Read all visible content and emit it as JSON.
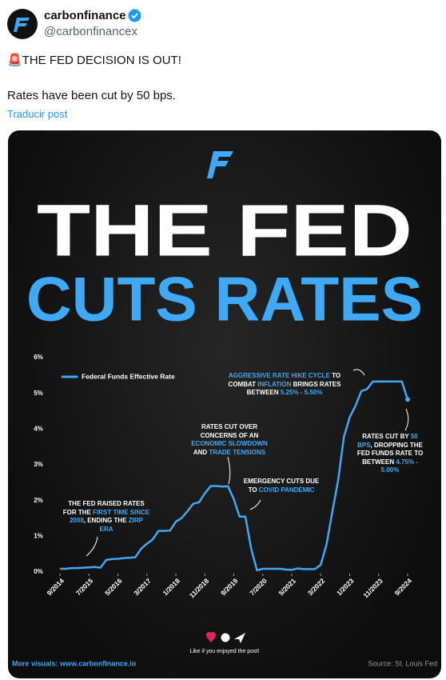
{
  "header": {
    "name": "carbonfinance",
    "handle": "@carbonfinancex",
    "text": "🚨THE FED DECISION IS OUT!",
    "subtext": "Rates have been cut by 50 bps.",
    "translate": "Traducir post"
  },
  "infographic": {
    "title_line1": "THE FED",
    "title_line2": "CUTS RATES",
    "like_text": "Like if you enjoyed the post!",
    "footer_left": "More visuals: www.carbonfinance.io",
    "footer_right": "Source: St. Louis Fed"
  },
  "chart_data": {
    "type": "line",
    "x": [
      "9/2014",
      "11/2014",
      "1/2015",
      "3/2015",
      "5/2015",
      "7/2015",
      "9/2015",
      "11/2015",
      "1/2016",
      "3/2016",
      "5/2016",
      "7/2016",
      "9/2016",
      "11/2016",
      "1/2017",
      "3/2017",
      "5/2017",
      "7/2017",
      "9/2017",
      "11/2017",
      "1/2018",
      "3/2018",
      "5/2018",
      "7/2018",
      "9/2018",
      "11/2018",
      "1/2019",
      "3/2019",
      "5/2019",
      "7/2019",
      "9/2019",
      "11/2019",
      "1/2020",
      "3/2020",
      "5/2020",
      "7/2020",
      "9/2020",
      "11/2020",
      "1/2021",
      "3/2021",
      "5/2021",
      "7/2021",
      "9/2021",
      "11/2021",
      "1/2022",
      "3/2022",
      "5/2022",
      "7/2022",
      "9/2022",
      "11/2022",
      "1/2023",
      "3/2023",
      "5/2023",
      "7/2023",
      "9/2023",
      "11/2023",
      "1/2024",
      "3/2024",
      "5/2024",
      "7/2024",
      "9/2024"
    ],
    "series": [
      {
        "name": "Federal Funds Effective Rate",
        "color": "#3fa9f5",
        "values": [
          0.09,
          0.09,
          0.11,
          0.11,
          0.12,
          0.13,
          0.14,
          0.12,
          0.34,
          0.36,
          0.37,
          0.39,
          0.4,
          0.41,
          0.65,
          0.79,
          0.91,
          1.15,
          1.15,
          1.16,
          1.41,
          1.51,
          1.7,
          1.91,
          1.95,
          2.2,
          2.4,
          2.41,
          2.39,
          2.4,
          2.04,
          1.55,
          1.55,
          0.65,
          0.05,
          0.09,
          0.09,
          0.09,
          0.09,
          0.07,
          0.06,
          0.1,
          0.08,
          0.08,
          0.08,
          0.2,
          0.77,
          1.68,
          2.56,
          3.78,
          4.33,
          4.65,
          5.06,
          5.12,
          5.33,
          5.33,
          5.33,
          5.33,
          5.33,
          5.33,
          4.83
        ]
      }
    ],
    "ylim": [
      0,
      6
    ],
    "yticks": [
      {
        "value": 0,
        "label": "0%"
      },
      {
        "value": 1,
        "label": "1%"
      },
      {
        "value": 2,
        "label": "2%"
      },
      {
        "value": 3,
        "label": "3%"
      },
      {
        "value": 4,
        "label": "4%"
      },
      {
        "value": 5,
        "label": "5%"
      },
      {
        "value": 6,
        "label": "6%"
      }
    ],
    "xticks": [
      "9/2014",
      "7/2015",
      "5/2016",
      "3/2017",
      "1/2018",
      "11/2018",
      "9/2019",
      "7/2020",
      "5/2021",
      "3/2022",
      "1/2023",
      "11/2023",
      "9/2024"
    ],
    "legend": "upper left",
    "annotations": [
      {
        "parts": [
          {
            "text": "THE FED RAISED RATES FOR THE "
          },
          {
            "text": "FIRST TIME SINCE 2008",
            "color": "#3fa9f5"
          },
          {
            "text": ", ENDING THE "
          },
          {
            "text": "ZIRP ERA",
            "color": "#3fa9f5"
          }
        ]
      },
      {
        "parts": [
          {
            "text": "RATES CUT OVER CONCERNS OF AN "
          },
          {
            "text": "ECONOMIC SLOWDOWN",
            "color": "#3fa9f5"
          },
          {
            "text": " AND "
          },
          {
            "text": "TRADE TENSIONS",
            "color": "#3fa9f5"
          }
        ]
      },
      {
        "parts": [
          {
            "text": "EMERGENCY CUTS DUE TO "
          },
          {
            "text": "COVID PANDEMIC",
            "color": "#3fa9f5"
          }
        ]
      },
      {
        "parts": [
          {
            "text": "AGGRESSIVE RATE HIKE CYCLE",
            "color": "#3fa9f5"
          },
          {
            "text": " TO COMBAT "
          },
          {
            "text": "INFLATION",
            "color": "#3fa9f5"
          },
          {
            "text": " BRINGS RATES BETWEEN "
          },
          {
            "text": "5.25% - 5.50%",
            "color": "#3fa9f5"
          }
        ]
      },
      {
        "parts": [
          {
            "text": "RATES CUT BY "
          },
          {
            "text": "50 BPS",
            "color": "#3fa9f5"
          },
          {
            "text": ", DROPPING THE FED FUNDS RATE TO BETWEEN "
          },
          {
            "text": "4.75% - 5.00%",
            "color": "#3fa9f5"
          }
        ]
      }
    ]
  }
}
